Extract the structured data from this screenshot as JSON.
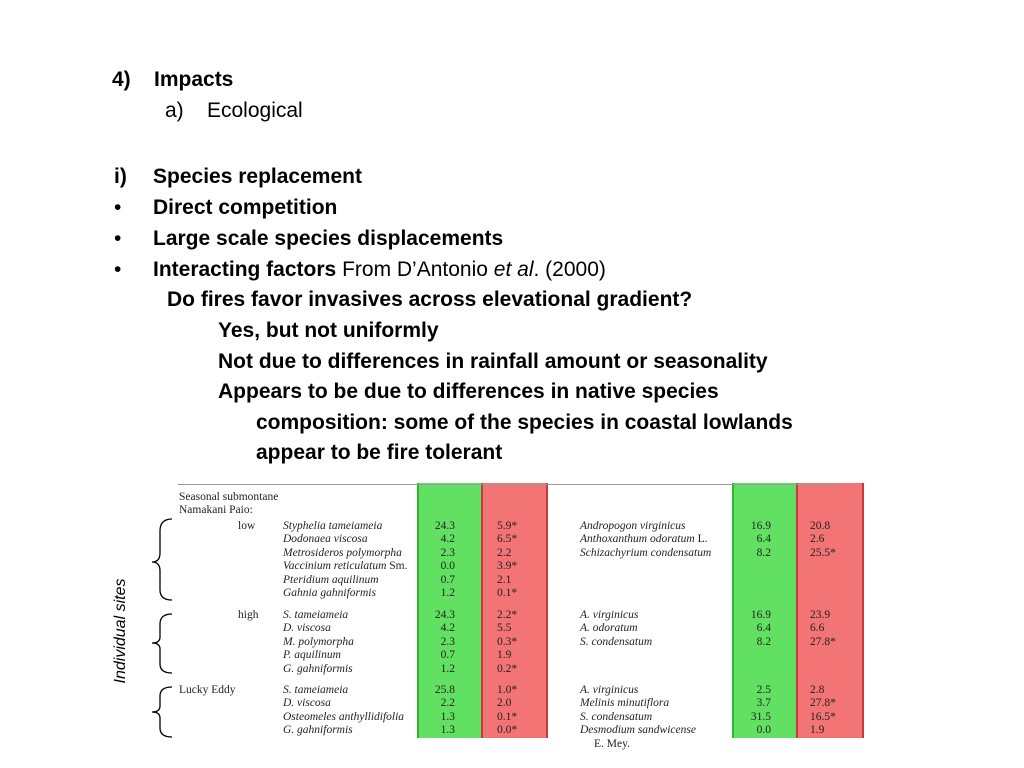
{
  "header": {
    "number": "4)",
    "title": "Impacts",
    "sub_letter": "a)",
    "sub_title": "Ecological"
  },
  "points": {
    "item_i_marker": "i)",
    "item_i": "Species replacement",
    "bullet": "•",
    "direct": "Direct competition",
    "large": "Large scale species displacements",
    "interacting": "Interacting factors",
    "from_prefix": "From D’Antonio",
    "et_al": "et al",
    "from_suffix": ". (2000)",
    "question": "Do fires favor invasives across elevational gradient?",
    "answer1": "Yes, but not uniformly",
    "answer2": "Not due to differences in rainfall amount or seasonality",
    "answer3a": "Appears to be due to differences in native species",
    "answer3b": "composition: some of the species in coastal lowlands",
    "answer3c": "appear to be fire tolerant"
  },
  "table": {
    "header_line1": "Seasonal submontane",
    "header_line2": "Namakani Paio:",
    "side_label": "Individual sites",
    "colors": {
      "green": "#5ee55e",
      "red": "#f07070"
    },
    "groups": [
      {
        "site": "low",
        "rows": [
          {
            "left_species": "Styphelia tameiameia",
            "left_suffix": "",
            "v1": "24.3",
            "v2": "5.9*",
            "right_species": "Andropogon virginicus",
            "right_suffix": "",
            "v3": "16.9",
            "v4": "20.8"
          },
          {
            "left_species": "Dodonaea viscosa",
            "left_suffix": "",
            "v1": "4.2",
            "v2": "6.5*",
            "right_species": "Anthoxanthum odoratum",
            "right_suffix": " L.",
            "v3": "6.4",
            "v4": "2.6"
          },
          {
            "left_species": "Metrosideros polymorpha",
            "left_suffix": "",
            "v1": "2.3",
            "v2": "2.2",
            "right_species": "Schizachyrium condensatum",
            "right_suffix": "",
            "v3": "8.2",
            "v4": "25.5*"
          },
          {
            "left_species": "Vaccinium reticulatum",
            "left_suffix": " Sm.",
            "v1": "0.0",
            "v2": "3.9*",
            "right_species": "",
            "right_suffix": "",
            "v3": "",
            "v4": ""
          },
          {
            "left_species": "Pteridium aquilinum",
            "left_suffix": "",
            "v1": "0.7",
            "v2": "2.1",
            "right_species": "",
            "right_suffix": "",
            "v3": "",
            "v4": ""
          },
          {
            "left_species": "Gahnia gahniformis",
            "left_suffix": "",
            "v1": "1.2",
            "v2": "0.1*",
            "right_species": "",
            "right_suffix": "",
            "v3": "",
            "v4": ""
          }
        ]
      },
      {
        "site": "high",
        "rows": [
          {
            "left_species": "S. tameiameia",
            "left_suffix": "",
            "v1": "24.3",
            "v2": "2.2*",
            "right_species": "A. virginicus",
            "right_suffix": "",
            "v3": "16.9",
            "v4": "23.9"
          },
          {
            "left_species": "D. viscosa",
            "left_suffix": "",
            "v1": "4.2",
            "v2": "5.5",
            "right_species": "A. odoratum",
            "right_suffix": "",
            "v3": "6.4",
            "v4": "6.6"
          },
          {
            "left_species": "M. polymorpha",
            "left_suffix": "",
            "v1": "2.3",
            "v2": "0.3*",
            "right_species": "S. condensatum",
            "right_suffix": "",
            "v3": "8.2",
            "v4": "27.8*"
          },
          {
            "left_species": "P. aquilinum",
            "left_suffix": "",
            "v1": "0.7",
            "v2": "1.9",
            "right_species": "",
            "right_suffix": "",
            "v3": "",
            "v4": ""
          },
          {
            "left_species": "G. gahniformis",
            "left_suffix": "",
            "v1": "1.2",
            "v2": "0.2*",
            "right_species": "",
            "right_suffix": "",
            "v3": "",
            "v4": ""
          }
        ]
      },
      {
        "site": "Lucky Eddy",
        "rows": [
          {
            "left_species": "S. tameiameia",
            "left_suffix": "",
            "v1": "25.8",
            "v2": "1.0*",
            "right_species": "A. virginicus",
            "right_suffix": "",
            "v3": "2.5",
            "v4": "2.8"
          },
          {
            "left_species": "D. viscosa",
            "left_suffix": "",
            "v1": "2.2",
            "v2": "2.0",
            "right_species": "Melinis minutiflora",
            "right_suffix": "",
            "v3": "3.7",
            "v4": "27.8*"
          },
          {
            "left_species": "Osteomeles anthyllidifolia",
            "left_suffix": "",
            "v1": "1.3",
            "v2": "0.1*",
            "right_species": "S. condensatum",
            "right_suffix": "",
            "v3": "31.5",
            "v4": "16.5*"
          },
          {
            "left_species": "G. gahniformis",
            "left_suffix": "",
            "v1": "1.3",
            "v2": "0.0*",
            "right_species": "Desmodium sandwicense",
            "right_suffix": "",
            "v3": "0.0",
            "v4": "1.9"
          }
        ]
      }
    ],
    "footer_line": "E. Mey."
  }
}
